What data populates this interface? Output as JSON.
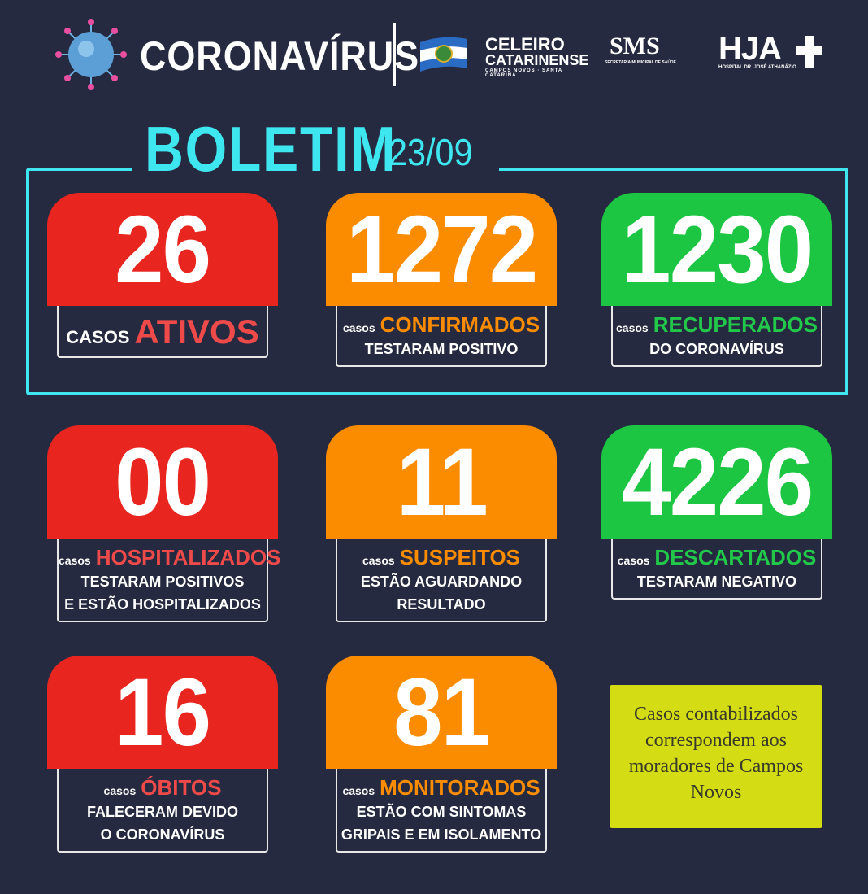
{
  "header": {
    "title": "CORONAVÍRUS",
    "logos": {
      "celeiro": [
        "CELEIRO",
        "CATARINENSE",
        "CAMPOS NOVOS · SANTA CATARINA"
      ],
      "sms": [
        "SMS",
        "SECRETARIA MUNICIPAL DE SAÚDE"
      ],
      "hja": [
        "HJA",
        "HOSPITAL DR. JOSÉ ATHANÁZIO"
      ]
    }
  },
  "boletim": {
    "label": "BOLETIM",
    "date": "23/09"
  },
  "colors": {
    "background": "#262a40",
    "accent": "#3ee6f0",
    "red": "#e8261f",
    "orange": "#fb8c00",
    "green": "#1cc643",
    "note": "#d4dc14"
  },
  "cards": [
    {
      "value": "26",
      "casos": "CASOS",
      "label": "ATIVOS",
      "lines": []
    },
    {
      "value": "1272",
      "casos": "casos",
      "label": "CONFIRMADOS",
      "lines": [
        "TESTARAM POSITIVO"
      ]
    },
    {
      "value": "1230",
      "casos": "casos",
      "label": "RECUPERADOS",
      "lines": [
        "DO CORONAVÍRUS"
      ]
    },
    {
      "value": "00",
      "casos": "casos",
      "label": "HOSPITALIZADOS",
      "lines": [
        "TESTARAM POSITIVOS",
        "E ESTÃO HOSPITALIZADOS"
      ]
    },
    {
      "value": "11",
      "casos": "casos",
      "label": "SUSPEITOS",
      "lines": [
        "ESTÃO AGUARDANDO",
        "RESULTADO"
      ]
    },
    {
      "value": "4226",
      "casos": "casos",
      "label": "DESCARTADOS",
      "lines": [
        "TESTARAM NEGATIVO"
      ]
    },
    {
      "value": "16",
      "casos": "casos",
      "label": "ÓBITOS",
      "lines": [
        "FALECERAM DEVIDO",
        "O CORONAVÍRUS"
      ]
    },
    {
      "value": "81",
      "casos": "casos",
      "label": "MONITORADOS",
      "lines": [
        "ESTÃO COM SINTOMAS",
        "GRIPAIS E EM ISOLAMENTO"
      ]
    }
  ],
  "note": "Casos contabilizados correspondem aos moradores de Campos Novos"
}
